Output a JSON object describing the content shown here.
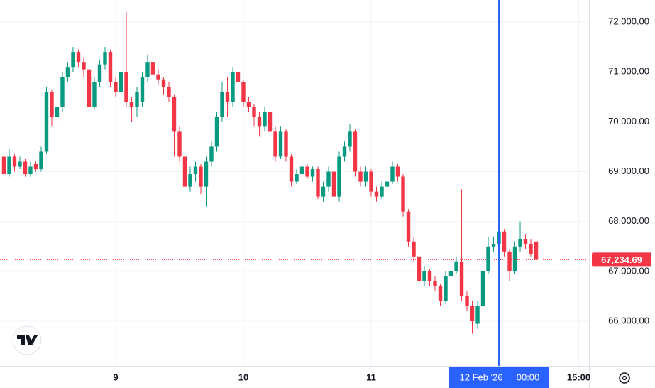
{
  "chart_data": {
    "type": "candlestick",
    "x": [
      3,
      4,
      5,
      6,
      7,
      8,
      9,
      10,
      11,
      12,
      13,
      14,
      15,
      16,
      17,
      18,
      19,
      20,
      21,
      22,
      23,
      24,
      25,
      26,
      27,
      28,
      29,
      30,
      31,
      32,
      33,
      34,
      35,
      36,
      37,
      38,
      39,
      40,
      41,
      42,
      43,
      44,
      45,
      46,
      47,
      48,
      49,
      50,
      51,
      52,
      53,
      54,
      55,
      56,
      57,
      58,
      59,
      60,
      61,
      62,
      63,
      64,
      65,
      66,
      67,
      68,
      69,
      70,
      71,
      72,
      73,
      74,
      75,
      76,
      77,
      78,
      79,
      80,
      81,
      82,
      83,
      84,
      85,
      86,
      87,
      88,
      89,
      90,
      91,
      92,
      93,
      94,
      95,
      96,
      97,
      98,
      99,
      100,
      101,
      102,
      103
    ],
    "open": [
      69300,
      68950,
      69300,
      69100,
      69200,
      68950,
      69150,
      69050,
      69400,
      70600,
      70100,
      70300,
      70900,
      71100,
      71400,
      71200,
      71050,
      70300,
      70800,
      71150,
      71400,
      70800,
      70600,
      71000,
      70400,
      70300,
      70400,
      70900,
      71200,
      70950,
      70850,
      70700,
      70500,
      69800,
      69300,
      68700,
      68950,
      69100,
      68700,
      69200,
      69500,
      70100,
      70600,
      70400,
      71000,
      70800,
      70400,
      70300,
      70100,
      69900,
      70200,
      69800,
      69300,
      69800,
      69300,
      68800,
      68950,
      69100,
      68900,
      69050,
      68500,
      68700,
      69000,
      68500,
      69300,
      69500,
      69800,
      69000,
      68800,
      69000,
      68600,
      68500,
      68700,
      68800,
      69100,
      68900,
      68200,
      67600,
      67300,
      66800,
      67000,
      66800,
      66700,
      66400,
      66900,
      67000,
      67200,
      66500,
      66300,
      65950,
      66300,
      67000,
      67500,
      67550,
      67800,
      67400,
      67000,
      67500,
      67650,
      67550,
      67600
    ],
    "high": [
      69400,
      69450,
      69350,
      69300,
      69250,
      69200,
      69200,
      69500,
      70700,
      70650,
      70500,
      71000,
      71200,
      71500,
      71450,
      71300,
      71100,
      70900,
      71250,
      71500,
      71450,
      70900,
      71100,
      72200,
      70500,
      70700,
      71000,
      71350,
      71250,
      71050,
      70900,
      70800,
      70550,
      69900,
      69350,
      69100,
      69200,
      69150,
      69300,
      69600,
      70200,
      70800,
      70900,
      71100,
      71050,
      70850,
      70500,
      70350,
      70200,
      70300,
      70250,
      69900,
      69900,
      69850,
      69350,
      69050,
      69200,
      69150,
      69100,
      69100,
      68800,
      69100,
      69500,
      69400,
      69600,
      69950,
      69850,
      69100,
      69100,
      69050,
      68700,
      68800,
      68900,
      69200,
      69150,
      68950,
      68250,
      67700,
      67350,
      67100,
      67050,
      66900,
      66750,
      67000,
      67100,
      67300,
      68650,
      66600,
      66400,
      66400,
      67100,
      67700,
      67700,
      67850,
      67850,
      67450,
      67600,
      68000,
      67750,
      67650,
      67650
    ],
    "low": [
      68850,
      68900,
      69000,
      69050,
      68900,
      68900,
      69000,
      69000,
      69350,
      69900,
      69850,
      70200,
      70800,
      71000,
      71100,
      70900,
      70200,
      70250,
      70700,
      71050,
      70700,
      70500,
      70500,
      70300,
      70000,
      70100,
      70300,
      70800,
      70850,
      70750,
      70550,
      70400,
      69300,
      69200,
      68400,
      68600,
      68800,
      68550,
      68300,
      69100,
      69400,
      70000,
      70100,
      70300,
      70700,
      70300,
      70200,
      69900,
      69700,
      69800,
      69700,
      69200,
      69250,
      69200,
      68700,
      68750,
      68900,
      68850,
      68800,
      68450,
      68400,
      68600,
      67950,
      68400,
      69200,
      69400,
      68900,
      68700,
      68700,
      68500,
      68400,
      68450,
      68600,
      68750,
      68800,
      68100,
      67500,
      67200,
      66600,
      66700,
      66700,
      66600,
      66300,
      66350,
      66850,
      66950,
      66400,
      66200,
      65750,
      65850,
      66200,
      66950,
      67400,
      67500,
      67300,
      66800,
      66950,
      67400,
      67450,
      67300,
      67200
    ],
    "close": [
      68950,
      69300,
      69100,
      69200,
      68950,
      69100,
      69050,
      69400,
      70600,
      70100,
      70300,
      70900,
      71100,
      71400,
      71200,
      71050,
      70300,
      70800,
      71150,
      71400,
      70800,
      70600,
      71000,
      70400,
      70300,
      70600,
      70900,
      71200,
      70950,
      70850,
      70700,
      70500,
      69800,
      69300,
      68700,
      68950,
      69100,
      68700,
      69200,
      69500,
      70100,
      70600,
      70400,
      71000,
      70800,
      70400,
      70300,
      70100,
      69900,
      70200,
      69800,
      69300,
      69800,
      69300,
      68800,
      68950,
      69100,
      68900,
      69050,
      68500,
      68700,
      69000,
      68500,
      69300,
      69500,
      69800,
      69000,
      68800,
      69000,
      68600,
      68500,
      68700,
      68800,
      69100,
      68900,
      68200,
      67600,
      67300,
      66800,
      67000,
      66800,
      66700,
      66400,
      66900,
      67000,
      67200,
      66500,
      66300,
      66000,
      66300,
      67000,
      67500,
      67550,
      67800,
      67400,
      67000,
      67500,
      67650,
      67550,
      67350,
      67234.69
    ],
    "up_color": "#089981",
    "down_color": "#f23645",
    "xlim": [
      2.27,
      112.93
    ],
    "xticks": [
      {
        "value": 24,
        "label": "9"
      },
      {
        "value": 48,
        "label": "10"
      },
      {
        "value": 72,
        "label": "11"
      },
      {
        "value": 111,
        "label": "15:00"
      }
    ],
    "ylim": [
      65103,
      72442
    ],
    "yticks": [
      {
        "value": 66000,
        "label": "66,000.00"
      },
      {
        "value": 67000,
        "label": "67,000.00"
      },
      {
        "value": 68000,
        "label": "68,000.00"
      },
      {
        "value": 69000,
        "label": "69,000.00"
      },
      {
        "value": 70000,
        "label": "70,000.00"
      },
      {
        "value": 71000,
        "label": "71,000.00"
      },
      {
        "value": 72000,
        "label": "72,000.00"
      }
    ],
    "grid": true,
    "last_price": {
      "value": 67234.69,
      "label": "67,234.69",
      "color": "#f23645"
    },
    "crosshair": {
      "value": 96,
      "date_label": "12 Feb '26",
      "time_label": "00:00",
      "color": "#2962ff"
    }
  }
}
